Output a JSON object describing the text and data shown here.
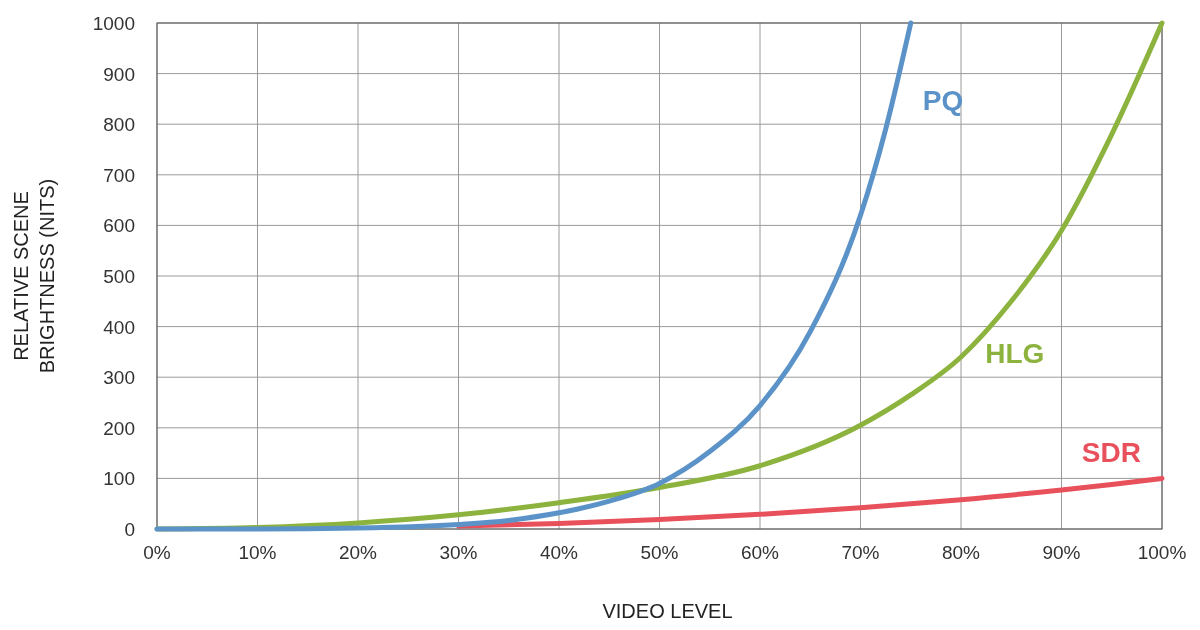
{
  "chart_data": {
    "type": "line",
    "xlabel": "VIDEO LEVEL",
    "ylabel": "RELATIVE SCENE BRIGHTNESS (NITS)",
    "xlim": [
      0,
      100
    ],
    "ylim": [
      0,
      1000
    ],
    "xticks": [
      {
        "value": 0,
        "label": "0%"
      },
      {
        "value": 10,
        "label": "10%"
      },
      {
        "value": 20,
        "label": "20%"
      },
      {
        "value": 30,
        "label": "30%"
      },
      {
        "value": 40,
        "label": "40%"
      },
      {
        "value": 50,
        "label": "50%"
      },
      {
        "value": 60,
        "label": "60%"
      },
      {
        "value": 70,
        "label": "70%"
      },
      {
        "value": 80,
        "label": "80%"
      },
      {
        "value": 90,
        "label": "90%"
      },
      {
        "value": 100,
        "label": "100%"
      }
    ],
    "yticks": [
      0,
      100,
      200,
      300,
      400,
      500,
      600,
      700,
      800,
      900,
      1000
    ],
    "grid": true,
    "marker": "none",
    "line_style": "solid",
    "series": [
      {
        "name": "PQ",
        "color": "#5b93c8",
        "x": [
          0,
          10,
          20,
          30,
          35,
          40,
          45,
          50,
          55,
          60,
          65,
          70,
          72.5,
          75
        ],
        "values": [
          0,
          0,
          2,
          9,
          17,
          32,
          55,
          90,
          153,
          244,
          390,
          620,
          790,
          1000
        ]
      },
      {
        "name": "HLG",
        "color": "#8db33f",
        "x": [
          0,
          10,
          20,
          30,
          40,
          50,
          60,
          70,
          75,
          80,
          85,
          90,
          95,
          100
        ],
        "values": [
          0,
          3,
          12,
          28,
          52,
          82,
          125,
          205,
          265,
          340,
          450,
          590,
          780,
          1000
        ]
      },
      {
        "name": "SDR",
        "color": "#e8505b",
        "x": [
          30,
          40,
          50,
          60,
          70,
          80,
          90,
          95,
          100
        ],
        "values": [
          6,
          11,
          19,
          29,
          42,
          58,
          77,
          88,
          100
        ]
      }
    ]
  }
}
